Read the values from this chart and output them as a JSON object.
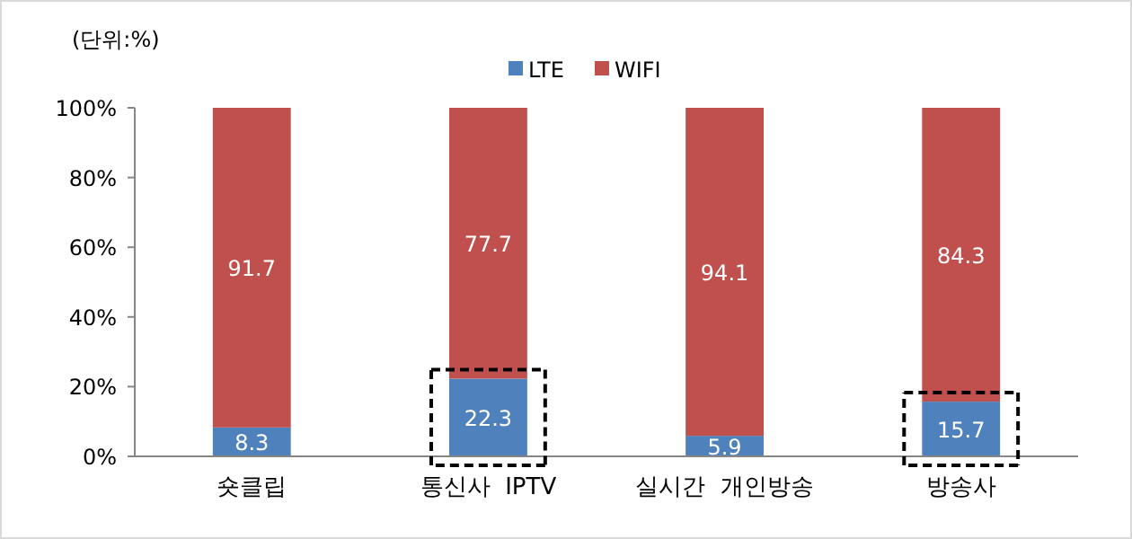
{
  "chart_data": {
    "type": "bar",
    "stacked": true,
    "categories": [
      "숏클립",
      "통신사  IPTV",
      "실시간  개인방송",
      "방송사"
    ],
    "series": [
      {
        "name": "LTE",
        "color": "#4f81bd",
        "values": [
          8.3,
          22.3,
          5.9,
          15.7
        ]
      },
      {
        "name": "WIFI",
        "color": "#c0504d",
        "values": [
          91.7,
          77.7,
          94.1,
          84.3
        ]
      }
    ],
    "ylim": [
      0,
      100
    ],
    "yticks": [
      {
        "value": 0,
        "label": "0%"
      },
      {
        "value": 20,
        "label": "20%"
      },
      {
        "value": 40,
        "label": "40%"
      },
      {
        "value": 60,
        "label": "60%"
      },
      {
        "value": 80,
        "label": "80%"
      },
      {
        "value": 100,
        "label": "100%"
      }
    ],
    "data_labels": true,
    "legend": "top",
    "grid": false,
    "annotations": [
      "(단위:%)"
    ]
  }
}
